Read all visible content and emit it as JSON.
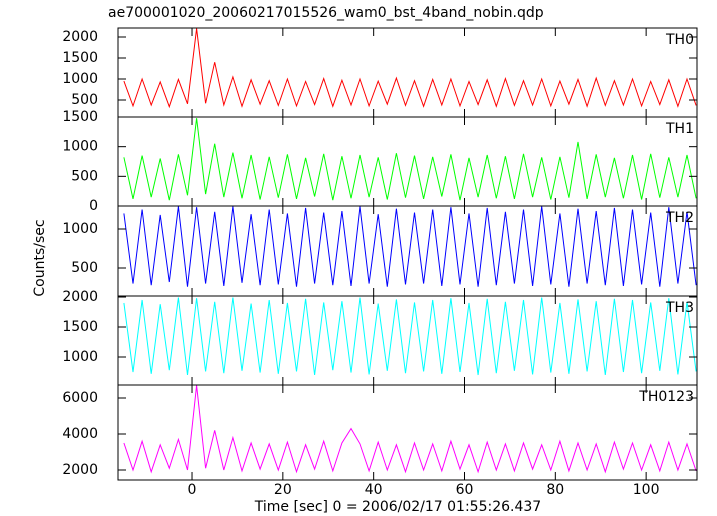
{
  "title": "ae700001020_20060217015526_wam0_bst_4band_nobin.qdp",
  "ylabel": "Counts/sec",
  "xlabel": "Time [sec] 0 = 2006/02/17 01:55:26.437",
  "chart_data": [
    {
      "type": "line",
      "xlim": [
        -16.3,
        111.2
      ],
      "xticks": [
        0,
        20,
        40,
        60,
        80,
        100
      ],
      "ylim": [
        95,
        2214
      ],
      "yticks": [
        500,
        1000,
        1500,
        2000
      ],
      "x": [
        -15,
        -13,
        -11,
        -9,
        -7,
        -5,
        -3,
        -1,
        1,
        3,
        5,
        7,
        9,
        11,
        13,
        15,
        17,
        19,
        21,
        23,
        25,
        27,
        29,
        31,
        33,
        35,
        37,
        39,
        41,
        43,
        45,
        47,
        49,
        51,
        53,
        55,
        57,
        59,
        61,
        63,
        65,
        67,
        69,
        71,
        73,
        75,
        77,
        79,
        81,
        83,
        85,
        87,
        89,
        91,
        93,
        95,
        97,
        99,
        101,
        103,
        105,
        107,
        109,
        111
      ],
      "series": [
        {
          "name": "TH0",
          "color": "#ff0000",
          "values": [
            950,
            360,
            1000,
            380,
            930,
            340,
            990,
            410,
            2200,
            420,
            1400,
            380,
            1050,
            350,
            980,
            400,
            960,
            370,
            1000,
            360,
            940,
            390,
            1010,
            350,
            970,
            380,
            1000,
            360,
            950,
            400,
            1020,
            370,
            960,
            350,
            990,
            380,
            1000,
            360,
            940,
            390,
            980,
            350,
            1010,
            370,
            960,
            380,
            1000,
            360,
            950,
            400,
            990,
            350,
            1020,
            370,
            960,
            380,
            1000,
            360,
            940,
            390,
            980,
            350,
            1000,
            370
          ]
        }
      ]
    },
    {
      "type": "line",
      "xlim": [
        -16.3,
        111.2
      ],
      "xticks": [
        0,
        20,
        40,
        60,
        80,
        100
      ],
      "ylim": [
        0,
        1500
      ],
      "yticks": [
        0,
        500,
        1000,
        1500
      ],
      "x": [
        -15,
        -13,
        -11,
        -9,
        -7,
        -5,
        -3,
        -1,
        1,
        3,
        5,
        7,
        9,
        11,
        13,
        15,
        17,
        19,
        21,
        23,
        25,
        27,
        29,
        31,
        33,
        35,
        37,
        39,
        41,
        43,
        45,
        47,
        49,
        51,
        53,
        55,
        57,
        59,
        61,
        63,
        65,
        67,
        69,
        71,
        73,
        75,
        77,
        79,
        81,
        83,
        85,
        87,
        89,
        91,
        93,
        95,
        97,
        99,
        101,
        103,
        105,
        107,
        109,
        111
      ],
      "series": [
        {
          "name": "TH1",
          "color": "#00ff00",
          "values": [
            820,
            120,
            850,
            150,
            800,
            100,
            870,
            180,
            1480,
            200,
            1050,
            150,
            900,
            130,
            860,
            110,
            830,
            140,
            870,
            120,
            810,
            160,
            880,
            100,
            840,
            130,
            860,
            150,
            820,
            110,
            890,
            140,
            850,
            120,
            830,
            160,
            870,
            100,
            810,
            150,
            860,
            130,
            840,
            120,
            880,
            150,
            820,
            110,
            830,
            140,
            1080,
            120,
            870,
            150,
            810,
            130,
            860,
            110,
            880,
            140,
            820,
            150,
            860,
            130
          ]
        }
      ]
    },
    {
      "type": "line",
      "xlim": [
        -16.3,
        111.2
      ],
      "xticks": [
        0,
        20,
        40,
        60,
        80,
        100
      ],
      "ylim": [
        141,
        1295
      ],
      "yticks": [
        500,
        1000
      ],
      "x": [
        -15,
        -13,
        -11,
        -9,
        -7,
        -5,
        -3,
        -1,
        1,
        3,
        5,
        7,
        9,
        11,
        13,
        15,
        17,
        19,
        21,
        23,
        25,
        27,
        29,
        31,
        33,
        35,
        37,
        39,
        41,
        43,
        45,
        47,
        49,
        51,
        53,
        55,
        57,
        59,
        61,
        63,
        65,
        67,
        69,
        71,
        73,
        75,
        77,
        79,
        81,
        83,
        85,
        87,
        89,
        91,
        93,
        95,
        97,
        99,
        101,
        103,
        105,
        107,
        109,
        111
      ],
      "series": [
        {
          "name": "TH2",
          "color": "#0000ff",
          "values": [
            1200,
            300,
            1250,
            280,
            1180,
            320,
            1290,
            260,
            1280,
            300,
            1220,
            270,
            1290,
            310,
            1190,
            280,
            1250,
            290,
            1200,
            260,
            1270,
            300,
            1210,
            280,
            1230,
            270,
            1290,
            300,
            1190,
            260,
            1260,
            290,
            1210,
            300,
            1250,
            270,
            1280,
            290,
            1200,
            260,
            1270,
            280,
            1220,
            300,
            1250,
            270,
            1290,
            290,
            1200,
            260,
            1260,
            300,
            1230,
            280,
            1270,
            270,
            1250,
            290,
            1210,
            260,
            1280,
            300,
            1220,
            280
          ]
        }
      ]
    },
    {
      "type": "line",
      "xlim": [
        -16.3,
        111.2
      ],
      "xticks": [
        0,
        20,
        40,
        60,
        80,
        100
      ],
      "ylim": [
        533,
        2017
      ],
      "yticks": [
        1000,
        1500,
        2000
      ],
      "x": [
        -15,
        -13,
        -11,
        -9,
        -7,
        -5,
        -3,
        -1,
        1,
        3,
        5,
        7,
        9,
        11,
        13,
        15,
        17,
        19,
        21,
        23,
        25,
        27,
        29,
        31,
        33,
        35,
        37,
        39,
        41,
        43,
        45,
        47,
        49,
        51,
        53,
        55,
        57,
        59,
        61,
        63,
        65,
        67,
        69,
        71,
        73,
        75,
        77,
        79,
        81,
        83,
        85,
        87,
        89,
        91,
        93,
        95,
        97,
        99,
        101,
        103,
        105,
        107,
        109,
        111
      ],
      "series": [
        {
          "name": "TH3",
          "color": "#00ffff",
          "values": [
            1900,
            750,
            1950,
            720,
            1880,
            780,
            1990,
            700,
            1980,
            760,
            1920,
            730,
            1990,
            770,
            1890,
            740,
            1950,
            720,
            1900,
            760,
            1970,
            700,
            1910,
            780,
            1930,
            740,
            1990,
            710,
            1890,
            770,
            1960,
            730,
            1910,
            760,
            1950,
            720,
            1980,
            750,
            1900,
            700,
            1970,
            730,
            1920,
            770,
            1950,
            710,
            1990,
            740,
            1900,
            720,
            1960,
            760,
            1930,
            700,
            1970,
            750,
            1950,
            730,
            1910,
            770,
            1980,
            710,
            1920,
            760
          ]
        }
      ]
    },
    {
      "type": "line",
      "xlim": [
        -16.3,
        111.2
      ],
      "xticks": [
        0,
        20,
        40,
        60,
        80,
        100
      ],
      "ylim": [
        1444,
        6722
      ],
      "yticks": [
        2000,
        4000,
        6000
      ],
      "x": [
        -15,
        -13,
        -11,
        -9,
        -7,
        -5,
        -3,
        -1,
        1,
        3,
        5,
        7,
        9,
        11,
        13,
        15,
        17,
        19,
        21,
        23,
        25,
        27,
        29,
        31,
        33,
        35,
        37,
        39,
        41,
        43,
        45,
        47,
        49,
        51,
        53,
        55,
        57,
        59,
        61,
        63,
        65,
        67,
        69,
        71,
        73,
        75,
        77,
        79,
        81,
        83,
        85,
        87,
        89,
        91,
        93,
        95,
        97,
        99,
        101,
        103,
        105,
        107,
        109,
        111
      ],
      "series": [
        {
          "name": "TH0123",
          "color": "#ff00ff",
          "values": [
            3500,
            2000,
            3600,
            1900,
            3400,
            2100,
            3700,
            2000,
            6700,
            2100,
            4200,
            2000,
            3800,
            1950,
            3500,
            2050,
            3450,
            2000,
            3550,
            1900,
            3400,
            2050,
            3600,
            1950,
            3500,
            4300,
            3450,
            1950,
            3550,
            2000,
            3400,
            1900,
            3500,
            2000,
            3450,
            1950,
            3600,
            2050,
            3400,
            1900,
            3550,
            2000,
            3450,
            1950,
            3500,
            2050,
            3400,
            2000,
            3600,
            1950,
            3500,
            2000,
            3450,
            1900,
            3550,
            2050,
            3500,
            2000,
            3400,
            1950,
            3550,
            2000,
            3450,
            1950
          ]
        }
      ]
    }
  ]
}
